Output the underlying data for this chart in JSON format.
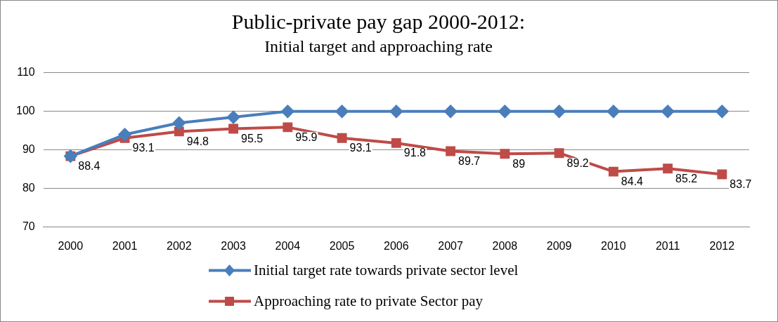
{
  "chart_data": {
    "type": "line",
    "title": "Public-private pay gap 2000-2012:",
    "subtitle": "Initial target and approaching rate",
    "categories": [
      "2000",
      "2001",
      "2002",
      "2003",
      "2004",
      "2005",
      "2006",
      "2007",
      "2008",
      "2009",
      "2010",
      "2011",
      "2012"
    ],
    "series": [
      {
        "name": "Initial target rate towards private sector level",
        "color": "#4a7ebb",
        "marker": "diamond",
        "values": [
          88.4,
          94,
          97,
          98.5,
          100,
          100,
          100,
          100,
          100,
          100,
          100,
          100,
          100
        ]
      },
      {
        "name": "Approaching rate to private Sector pay",
        "color": "#be4b48",
        "marker": "square",
        "values": [
          88.4,
          93.1,
          94.8,
          95.5,
          95.9,
          93.1,
          91.8,
          89.7,
          89,
          89.2,
          84.4,
          85.2,
          83.7
        ],
        "value_labels": [
          "88.4",
          "93.1",
          "94.8",
          "95.5",
          "95.9",
          "93.1",
          "91.8",
          "89.7",
          "89",
          "89.2",
          "84.4",
          "85.2",
          "83.7"
        ]
      }
    ],
    "ylim": [
      70,
      110
    ],
    "yticks": [
      70,
      80,
      90,
      100,
      110
    ],
    "grid": "y",
    "legend": "bottom",
    "line_style": "solid"
  }
}
